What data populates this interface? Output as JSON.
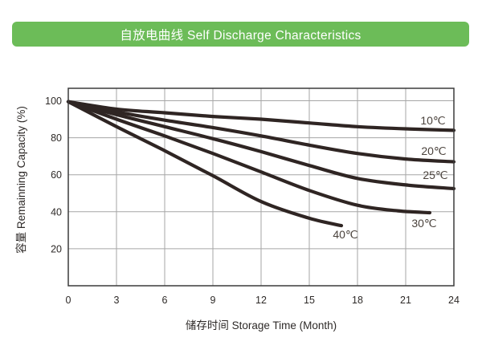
{
  "header": {
    "title": "自放电曲线 Self Discharge Characteristics",
    "bg_color": "#6cbc58",
    "text_color": "#ffffff"
  },
  "chart_data": {
    "type": "line",
    "title": "自放电曲线 Self Discharge Characteristics",
    "xlabel": "储存时间 Storage Time (Month)",
    "ylabel": "容量 Remainning Capacity (%)",
    "xlim": [
      0,
      24
    ],
    "ylim": [
      0,
      106.7
    ],
    "x_ticks": [
      0,
      3,
      6,
      9,
      12,
      15,
      18,
      21,
      24
    ],
    "y_ticks": [
      100,
      80,
      60,
      40,
      20
    ],
    "grid": true,
    "legend_position": "inline-right",
    "curve_color": "#2f2523",
    "grid_color": "#a6a6a6",
    "frame_color": "#3b3b3b",
    "tick_color": "#2e2a28",
    "label_color": "#4a423c",
    "series": [
      {
        "name": "10℃",
        "x": [
          0,
          3,
          6,
          9,
          12,
          15,
          18,
          21,
          24
        ],
        "values": [
          99.5,
          95.5,
          93.5,
          91.5,
          90,
          88,
          86,
          84.8,
          84
        ]
      },
      {
        "name": "20℃",
        "x": [
          0,
          3,
          6,
          9,
          12,
          15,
          18,
          21,
          24
        ],
        "values": [
          99.5,
          94,
          89.5,
          85.5,
          81,
          76,
          71.5,
          68.5,
          67
        ]
      },
      {
        "name": "25℃",
        "x": [
          0,
          3,
          6,
          9,
          12,
          15,
          18,
          21,
          24
        ],
        "values": [
          99.5,
          92.5,
          86,
          79.5,
          72.5,
          65,
          58,
          54.5,
          52.5
        ]
      },
      {
        "name": "30℃",
        "x": [
          0,
          3,
          6,
          9,
          12,
          15,
          18,
          20.5,
          22.5
        ],
        "values": [
          99.5,
          90,
          81,
          71.5,
          61.5,
          51.5,
          43.5,
          40.5,
          39.5
        ]
      },
      {
        "name": "40℃",
        "x": [
          0,
          3,
          6,
          9,
          12,
          15,
          17
        ],
        "values": [
          99.5,
          86,
          73,
          59.5,
          45.5,
          36.5,
          32.5
        ]
      }
    ]
  }
}
